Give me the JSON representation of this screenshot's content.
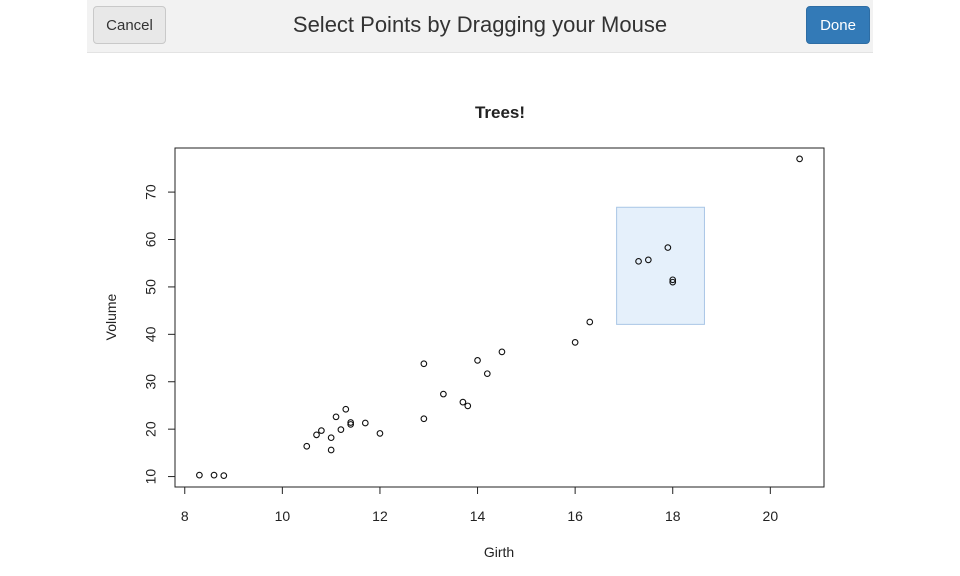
{
  "toolbar": {
    "cancel_label": "Cancel",
    "title": "Select Points by Dragging your Mouse",
    "done_label": "Done"
  },
  "colors": {
    "primary_button": "#337ab7",
    "selection_fill": "#e5f0fb",
    "selection_stroke": "#a9c6e6"
  },
  "selection": {
    "x_range": [
      16.85,
      18.65
    ],
    "y_range": [
      42.1,
      66.8
    ]
  },
  "chart_data": {
    "type": "scatter",
    "title": "Trees!",
    "xlabel": "Girth",
    "ylabel": "Volume",
    "xlim": [
      7.8,
      21.1
    ],
    "ylim": [
      7.8,
      79.3
    ],
    "xticks": [
      8,
      10,
      12,
      14,
      16,
      18,
      20
    ],
    "yticks": [
      10,
      20,
      30,
      40,
      50,
      60,
      70
    ],
    "grid": false,
    "points": [
      {
        "x": 8.3,
        "y": 10.3
      },
      {
        "x": 8.6,
        "y": 10.3
      },
      {
        "x": 8.8,
        "y": 10.2
      },
      {
        "x": 10.5,
        "y": 16.4
      },
      {
        "x": 10.7,
        "y": 18.8
      },
      {
        "x": 10.8,
        "y": 19.7
      },
      {
        "x": 11.0,
        "y": 15.6
      },
      {
        "x": 11.0,
        "y": 18.2
      },
      {
        "x": 11.1,
        "y": 22.6
      },
      {
        "x": 11.2,
        "y": 19.9
      },
      {
        "x": 11.3,
        "y": 24.2
      },
      {
        "x": 11.4,
        "y": 21.0
      },
      {
        "x": 11.4,
        "y": 21.4
      },
      {
        "x": 11.7,
        "y": 21.3
      },
      {
        "x": 12.0,
        "y": 19.1
      },
      {
        "x": 12.9,
        "y": 22.2
      },
      {
        "x": 12.9,
        "y": 33.8
      },
      {
        "x": 13.3,
        "y": 27.4
      },
      {
        "x": 13.7,
        "y": 25.7
      },
      {
        "x": 13.8,
        "y": 24.9
      },
      {
        "x": 14.0,
        "y": 34.5
      },
      {
        "x": 14.2,
        "y": 31.7
      },
      {
        "x": 14.5,
        "y": 36.3
      },
      {
        "x": 16.0,
        "y": 38.3
      },
      {
        "x": 16.3,
        "y": 42.6
      },
      {
        "x": 17.3,
        "y": 55.4
      },
      {
        "x": 17.5,
        "y": 55.7
      },
      {
        "x": 17.9,
        "y": 58.3
      },
      {
        "x": 18.0,
        "y": 51.5
      },
      {
        "x": 18.0,
        "y": 51.0
      },
      {
        "x": 20.6,
        "y": 77.0
      }
    ]
  }
}
